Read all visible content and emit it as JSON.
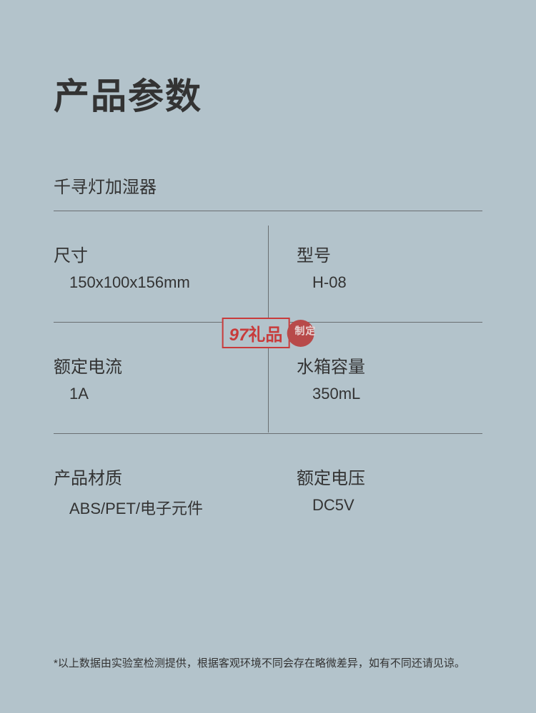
{
  "page": {
    "background_color": "#b3c3cb",
    "text_color": "#333333",
    "divider_color": "#6a6f72",
    "accent_color": "#c83b3b"
  },
  "title": "产品参数",
  "subtitle": "千寻灯加湿器",
  "specs": [
    {
      "label": "尺寸",
      "value": "150x100x156mm"
    },
    {
      "label": "型号",
      "value": "H-08"
    },
    {
      "label": "额定电流",
      "value": "1A"
    },
    {
      "label": "水箱容量",
      "value": "350mL"
    },
    {
      "label": "产品材质",
      "value": "ABS/PET/电子元件"
    },
    {
      "label": "额定电压",
      "value": "DC5V"
    }
  ],
  "watermark": {
    "brand_number": "97",
    "brand_text": "礼品",
    "seal_text": "定制"
  },
  "footnote": "*以上数据由实验室检测提供，根据客观环境不同会存在略微差异，如有不同还请见谅。"
}
